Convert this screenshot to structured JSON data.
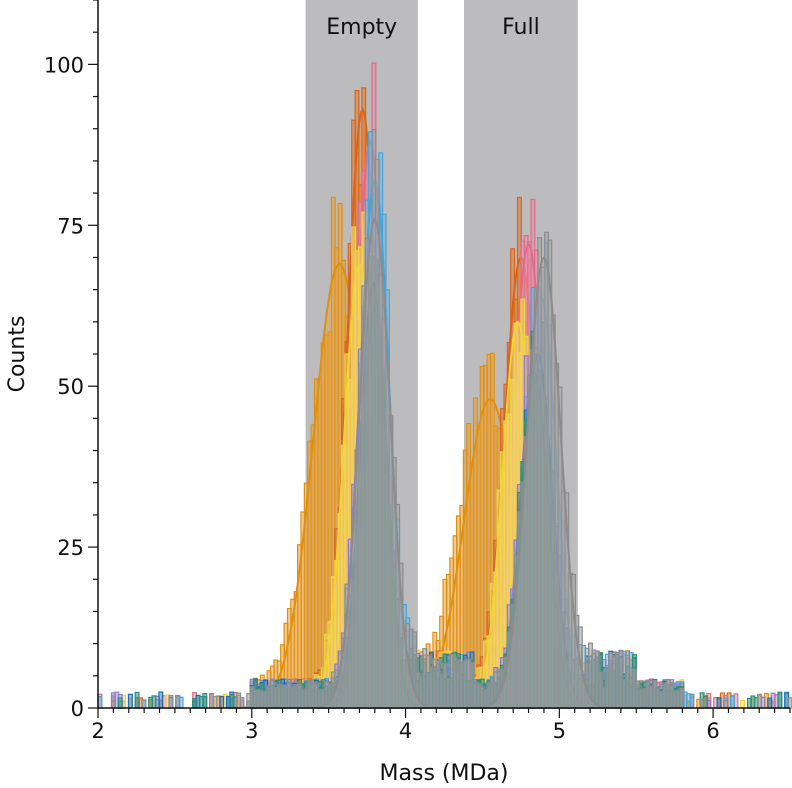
{
  "chart_data": {
    "type": "histogram-overlay",
    "title": "",
    "xlabel": "Mass (MDa)",
    "ylabel": "Counts",
    "xlim": [
      2.0,
      6.5
    ],
    "ylim": [
      0,
      110
    ],
    "xticks": [
      2,
      3,
      4,
      5,
      6
    ],
    "yticks": [
      0,
      25,
      50,
      75,
      100
    ],
    "x_tick_labels": [
      "2",
      "3",
      "4",
      "5",
      "6"
    ],
    "y_tick_labels": [
      "0",
      "25",
      "50",
      "75",
      "100"
    ],
    "legend": "none",
    "grid": false,
    "regions": [
      {
        "label": "Empty",
        "x_start": 3.35,
        "x_end": 4.08,
        "color": "#bcbcbe"
      },
      {
        "label": "Full",
        "x_start": 4.38,
        "x_end": 5.12,
        "color": "#bcbcbe"
      }
    ],
    "series": [
      {
        "color": "#e0900f",
        "fill": "#e8a13a",
        "peaks": [
          {
            "mu": 3.57,
            "sigma": 0.17,
            "amp": 69
          },
          {
            "mu": 4.55,
            "sigma": 0.17,
            "amp": 48
          }
        ]
      },
      {
        "color": "#d9651c",
        "fill": "#e07a32",
        "peaks": [
          {
            "mu": 3.72,
            "sigma": 0.1,
            "amp": 93
          },
          {
            "mu": 4.75,
            "sigma": 0.11,
            "amp": 70
          }
        ]
      },
      {
        "color": "#e06c8a",
        "fill": "#e88aa5",
        "peaks": [
          {
            "mu": 3.77,
            "sigma": 0.095,
            "amp": 88
          },
          {
            "mu": 4.8,
            "sigma": 0.105,
            "amp": 72
          }
        ]
      },
      {
        "color": "#f2d33a",
        "fill": "#f3dc6a",
        "peaks": [
          {
            "mu": 3.7,
            "sigma": 0.1,
            "amp": 69
          },
          {
            "mu": 4.73,
            "sigma": 0.1,
            "amp": 60
          }
        ]
      },
      {
        "color": "#4aa3d8",
        "fill": "#6db6e2",
        "peaks": [
          {
            "mu": 3.8,
            "sigma": 0.095,
            "amp": 82
          },
          {
            "mu": 4.88,
            "sigma": 0.1,
            "amp": 64
          }
        ]
      },
      {
        "color": "#8a7fc9",
        "fill": "#a095d3",
        "peaks": [
          {
            "mu": 3.78,
            "sigma": 0.09,
            "amp": 73
          },
          {
            "mu": 4.85,
            "sigma": 0.1,
            "amp": 56
          }
        ]
      },
      {
        "color": "#1e6fae",
        "fill": "#3a82bd",
        "peaks": [
          {
            "mu": 3.79,
            "sigma": 0.085,
            "amp": 66
          },
          {
            "mu": 4.86,
            "sigma": 0.095,
            "amp": 55
          }
        ]
      },
      {
        "color": "#2f8f7a",
        "fill": "#3f8f78",
        "peaks": [
          {
            "mu": 3.8,
            "sigma": 0.08,
            "amp": 62
          },
          {
            "mu": 4.84,
            "sigma": 0.09,
            "amp": 52
          }
        ]
      },
      {
        "color": "#8c8c8c",
        "fill": "#a3a3a3",
        "peaks": [
          {
            "mu": 3.8,
            "sigma": 0.1,
            "amp": 76
          },
          {
            "mu": 4.9,
            "sigma": 0.11,
            "amp": 70
          }
        ]
      }
    ]
  }
}
